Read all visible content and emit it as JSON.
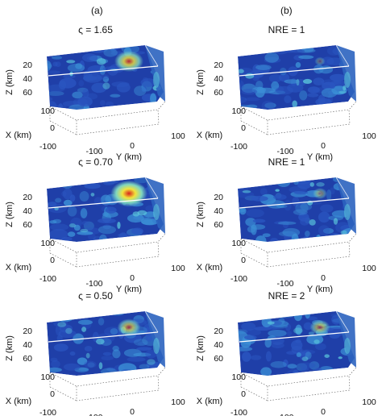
{
  "headers": {
    "a": "(a)",
    "b": "(b)"
  },
  "axes": {
    "z_label": "Z (km)",
    "x_label": "X (km)",
    "y_label": "Y (km)",
    "z_ticks": [
      "20",
      "40",
      "60"
    ],
    "x_ticks": [
      "100",
      "0",
      "-100"
    ],
    "y_ticks": [
      "-100",
      "0",
      "100"
    ]
  },
  "panels": [
    {
      "title": "ς = 1.65",
      "hotspot": 1.0
    },
    {
      "title": "NRE = 1",
      "hotspot": 0.05
    },
    {
      "title": "ς = 0.70",
      "hotspot": 1.4
    },
    {
      "title": "NRE = 1",
      "hotspot": 0.25
    },
    {
      "title": "ς = 0.50",
      "hotspot": 0.7
    },
    {
      "title": "NRE = 2",
      "hotspot": 0.55
    }
  ],
  "colors": {
    "slice_base": "#1f3fa8",
    "slice_mid": "#3b8fd6",
    "hot_yellow": "#f2e33b",
    "hot_red": "#d8221c"
  }
}
